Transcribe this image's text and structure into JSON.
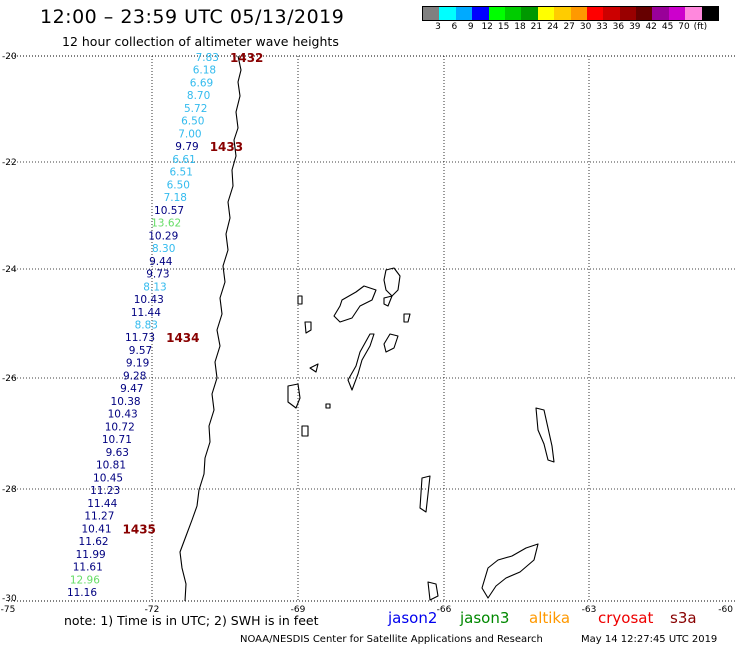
{
  "header": {
    "title": "12:00 – 23:59 UTC 05/13/2019",
    "subtitle": "12 hour collection of altimeter wave heights"
  },
  "color_scale": {
    "colors": [
      "#808080",
      "#00ffff",
      "#00aaff",
      "#0000ff",
      "#00ff00",
      "#00cc00",
      "#009900",
      "#ffff00",
      "#ffcc00",
      "#ff9900",
      "#ff0000",
      "#cc0000",
      "#990000",
      "#660000",
      "#990099",
      "#cc00cc",
      "#ff88dd",
      "#000000"
    ],
    "labels": [
      "3",
      "6",
      "9",
      "12",
      "15",
      "18",
      "21",
      "24",
      "27",
      "30",
      "33",
      "36",
      "39",
      "42",
      "45",
      "70",
      "(ft)"
    ]
  },
  "axes": {
    "lat_labels": [
      "-20",
      "-22",
      "-24",
      "-26",
      "-28",
      "-30"
    ],
    "lon_labels": [
      "-75",
      "-72",
      "-69",
      "-66",
      "-63",
      "-60"
    ]
  },
  "track": {
    "readings": [
      {
        "v": "7.83",
        "c": "#33bbee"
      },
      {
        "v": "6.18",
        "c": "#33bbee"
      },
      {
        "v": "6.69",
        "c": "#33bbee"
      },
      {
        "v": "8.70",
        "c": "#33bbee"
      },
      {
        "v": "5.72",
        "c": "#33bbee"
      },
      {
        "v": "6.50",
        "c": "#33bbee"
      },
      {
        "v": "7.00",
        "c": "#33bbee"
      },
      {
        "v": "9.79",
        "c": "#000080"
      },
      {
        "v": "6.61",
        "c": "#33bbee"
      },
      {
        "v": "6.51",
        "c": "#33bbee"
      },
      {
        "v": "6.50",
        "c": "#33bbee"
      },
      {
        "v": "7.18",
        "c": "#33bbee"
      },
      {
        "v": "10.57",
        "c": "#000080"
      },
      {
        "v": "13.62",
        "c": "#66dd66"
      },
      {
        "v": "10.29",
        "c": "#000080"
      },
      {
        "v": "8.30",
        "c": "#33bbee"
      },
      {
        "v": "9.44",
        "c": "#000080"
      },
      {
        "v": "9.73",
        "c": "#000080"
      },
      {
        "v": "8.13",
        "c": "#33bbee"
      },
      {
        "v": "10.43",
        "c": "#000080"
      },
      {
        "v": "11.44",
        "c": "#000080"
      },
      {
        "v": "8.83",
        "c": "#33bbee"
      },
      {
        "v": "11.73",
        "c": "#000080"
      },
      {
        "v": "9.57",
        "c": "#000080"
      },
      {
        "v": "9.19",
        "c": "#000080"
      },
      {
        "v": "9.28",
        "c": "#000080"
      },
      {
        "v": "9.47",
        "c": "#000080"
      },
      {
        "v": "10.38",
        "c": "#000080"
      },
      {
        "v": "10.43",
        "c": "#000080"
      },
      {
        "v": "10.72",
        "c": "#000080"
      },
      {
        "v": "10.71",
        "c": "#000080"
      },
      {
        "v": "9.63",
        "c": "#000080"
      },
      {
        "v": "10.81",
        "c": "#000080"
      },
      {
        "v": "10.45",
        "c": "#000080"
      },
      {
        "v": "11.23",
        "c": "#000080"
      },
      {
        "v": "11.44",
        "c": "#000080"
      },
      {
        "v": "11.27",
        "c": "#000080"
      },
      {
        "v": "10.41",
        "c": "#000080"
      },
      {
        "v": "11.62",
        "c": "#000080"
      },
      {
        "v": "11.99",
        "c": "#000080"
      },
      {
        "v": "11.61",
        "c": "#000080"
      },
      {
        "v": "12.96",
        "c": "#66dd66"
      },
      {
        "v": "11.16",
        "c": "#000080"
      }
    ],
    "time_labels": [
      "1432",
      "1433",
      "1434",
      "1435"
    ],
    "time_color": "#880000"
  },
  "footer": {
    "note": "note: 1) Time is in UTC; 2) SWH is in feet",
    "satellites": [
      {
        "name": "jason2",
        "color": "#0000ee"
      },
      {
        "name": "jason3",
        "color": "#008800"
      },
      {
        "name": "altika",
        "color": "#ff9900"
      },
      {
        "name": "cryosat",
        "color": "#ee0000"
      },
      {
        "name": "s3a",
        "color": "#880000"
      }
    ],
    "credit": "NOAA/NESDIS Center for Satellite Applications and Research",
    "timestamp": "May 14 12:27:45 UTC 2019"
  }
}
